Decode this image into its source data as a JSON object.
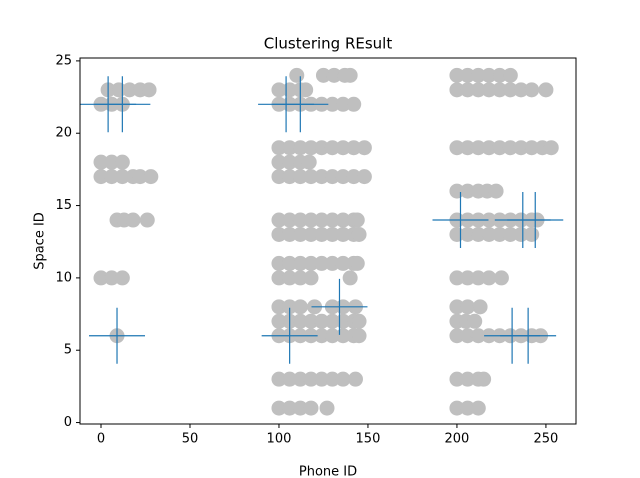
{
  "chart_data": {
    "type": "scatter",
    "title": "Clustering REsult",
    "xlabel": "Phone ID",
    "ylabel": "Space ID",
    "xlim": [
      -11.8,
      266.9
    ],
    "ylim": [
      -0.1,
      25.2
    ],
    "xticks": [
      0,
      50,
      100,
      150,
      200,
      250
    ],
    "yticks": [
      0,
      5,
      10,
      15,
      20,
      25
    ],
    "grid": false,
    "series": [
      {
        "color": "#bfbfbf",
        "marker": "o",
        "x": [
          4,
          10,
          16,
          22,
          27,
          0,
          6,
          12,
          0,
          6,
          12,
          0,
          6,
          12,
          18,
          22,
          28,
          9,
          13,
          18,
          26,
          0,
          6,
          12,
          9,
          110,
          125,
          131,
          137,
          140,
          100,
          106,
          112,
          115,
          100,
          106,
          112,
          118,
          124,
          130,
          136,
          142,
          100,
          106,
          112,
          118,
          124,
          130,
          136,
          142,
          148,
          100,
          106,
          112,
          117,
          100,
          106,
          112,
          118,
          124,
          130,
          136,
          142,
          148,
          100,
          106,
          112,
          118,
          124,
          130,
          136,
          142,
          144,
          100,
          106,
          112,
          118,
          124,
          130,
          136,
          142,
          145,
          100,
          106,
          112,
          118,
          124,
          130,
          136,
          142,
          144,
          100,
          106,
          112,
          118,
          140,
          100,
          106,
          112,
          120,
          130,
          136,
          143,
          100,
          106,
          112,
          118,
          124,
          130,
          136,
          142,
          145,
          100,
          106,
          112,
          118,
          124,
          130,
          136,
          142,
          145,
          100,
          106,
          112,
          118,
          124,
          130,
          136,
          143,
          100,
          106,
          112,
          118,
          127,
          200,
          206,
          212,
          218,
          224,
          230,
          200,
          206,
          212,
          218,
          224,
          230,
          236,
          242,
          250,
          200,
          206,
          212,
          218,
          224,
          230,
          236,
          242,
          248,
          253,
          200,
          206,
          212,
          217,
          222,
          200,
          206,
          212,
          218,
          224,
          230,
          236,
          242,
          245,
          200,
          206,
          212,
          218,
          224,
          230,
          236,
          242,
          200,
          206,
          212,
          218,
          225,
          200,
          206,
          213,
          200,
          205,
          210,
          200,
          206,
          212,
          218,
          224,
          230,
          236,
          242,
          247,
          200,
          206,
          212,
          215,
          200,
          206,
          212
        ],
        "y": [
          23,
          23,
          23,
          23,
          23,
          22,
          22,
          22,
          18,
          18,
          18,
          17,
          17,
          17,
          17,
          17,
          17,
          14,
          14,
          14,
          14,
          10,
          10,
          10,
          6,
          24,
          24,
          24,
          24,
          24,
          23,
          23,
          23,
          23,
          22,
          22,
          22,
          22,
          22,
          22,
          22,
          22,
          19,
          19,
          19,
          19,
          19,
          19,
          19,
          19,
          19,
          18,
          18,
          18,
          18,
          17,
          17,
          17,
          17,
          17,
          17,
          17,
          17,
          17,
          14,
          14,
          14,
          14,
          14,
          14,
          14,
          14,
          14,
          13,
          13,
          13,
          13,
          13,
          13,
          13,
          13,
          13,
          11,
          11,
          11,
          11,
          11,
          11,
          11,
          11,
          11,
          10,
          10,
          10,
          10,
          10,
          8,
          8,
          8,
          8,
          8,
          8,
          8,
          7,
          7,
          7,
          7,
          7,
          7,
          7,
          7,
          7,
          6,
          6,
          6,
          6,
          6,
          6,
          6,
          6,
          6,
          3,
          3,
          3,
          3,
          3,
          3,
          3,
          3,
          1,
          1,
          1,
          1,
          1,
          24,
          24,
          24,
          24,
          24,
          24,
          23,
          23,
          23,
          23,
          23,
          23,
          23,
          23,
          23,
          19,
          19,
          19,
          19,
          19,
          19,
          19,
          19,
          19,
          19,
          16,
          16,
          16,
          16,
          16,
          14,
          14,
          14,
          14,
          14,
          14,
          14,
          14,
          14,
          13,
          13,
          13,
          13,
          13,
          13,
          13,
          13,
          10,
          10,
          10,
          10,
          10,
          8,
          8,
          8,
          7,
          7,
          7,
          6,
          6,
          6,
          6,
          6,
          6,
          6,
          6,
          6,
          3,
          3,
          3,
          3,
          1,
          1,
          1
        ]
      },
      {
        "color": "#1f77b4",
        "marker": "+",
        "x": [
          4,
          12,
          104,
          112,
          9,
          134,
          106,
          202,
          237,
          244,
          231,
          240
        ],
        "y": [
          22,
          22,
          22,
          22,
          6,
          8,
          6,
          14,
          14,
          14,
          6,
          6
        ]
      }
    ]
  }
}
